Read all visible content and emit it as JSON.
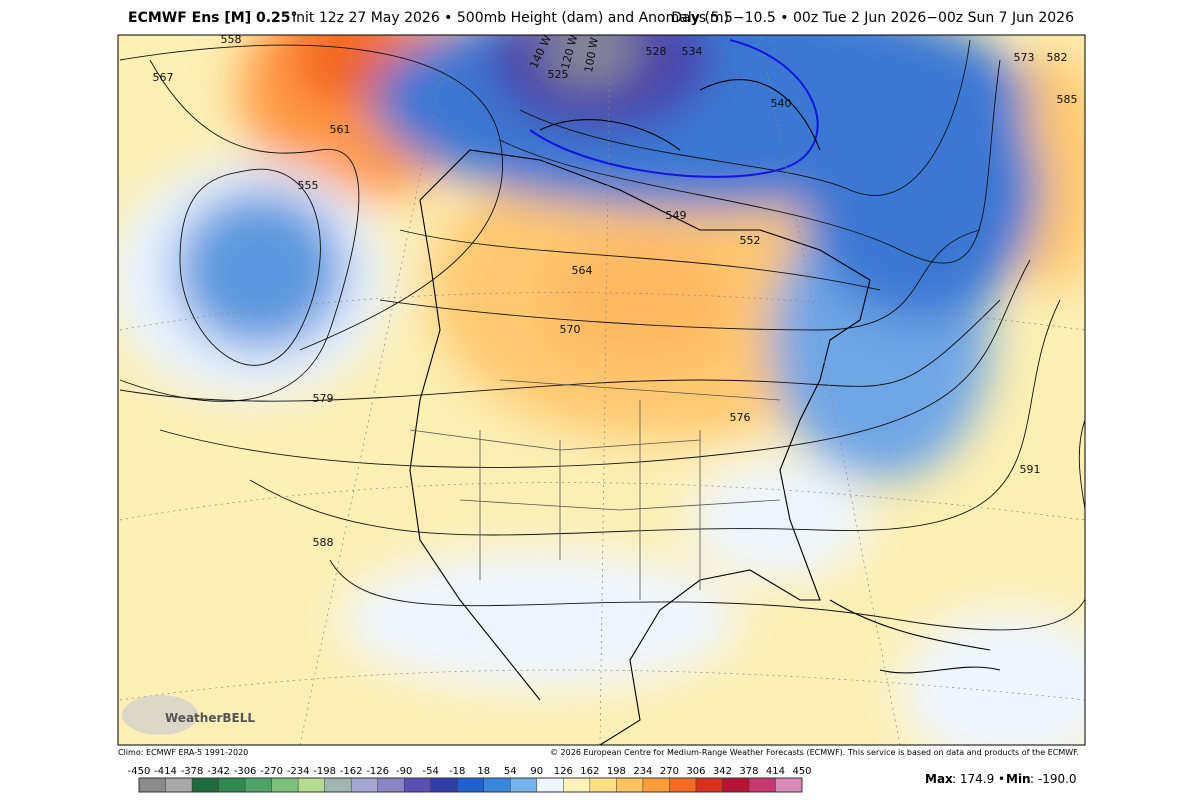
{
  "header": {
    "title": "ECMWF Ens [M] 0.25°",
    "description": "Init 12z 27 May 2026 • 500mb Height (dam) and Anomaly (m)",
    "valid": "Days 5.5−10.5 • 00z Tue 2 Jun 2026−00z Sun 7 Jun 2026"
  },
  "map": {
    "contour_labels": [
      "558",
      "567",
      "555",
      "564",
      "570",
      "579",
      "588",
      "591",
      "573",
      "582",
      "585",
      "534",
      "540",
      "528",
      "525",
      "549",
      "552",
      "576",
      "561",
      "100 W",
      "120 W",
      "140 W"
    ],
    "logo": "WeatherBELL"
  },
  "footer": {
    "climo": "Climo: ECMWF ERA-5 1991-2020",
    "copyright": "© 2026 European Centre for Medium-Range Weather Forecasts (ECMWF). This service is based on data and products of the ECMWF."
  },
  "colorbar": {
    "ticks": [
      -450,
      -414,
      -378,
      -342,
      -306,
      -270,
      -234,
      -198,
      -162,
      -126,
      -90,
      -54,
      -18,
      18,
      54,
      90,
      126,
      162,
      198,
      234,
      270,
      306,
      342,
      378,
      414,
      450
    ],
    "colors": [
      "#8a8a8a",
      "#a9a9a9",
      "#1e6b3b",
      "#2f8a52",
      "#4ea466",
      "#7cc27a",
      "#b3dc8f",
      "#9fb7b0",
      "#a3a6cf",
      "#8b83c7",
      "#5c4fb3",
      "#2f3ea8",
      "#1f5fcf",
      "#3a86de",
      "#75b3ec",
      "#eef5ff",
      "#fff3b8",
      "#ffdf86",
      "#ffc25e",
      "#ff9c3a",
      "#f56a22",
      "#d8321c",
      "#b51434",
      "#c8386e",
      "#d98ab8"
    ]
  },
  "stats": {
    "max_label": "Max",
    "max": "174.9",
    "min_label": "Min",
    "min": "-190.0"
  }
}
